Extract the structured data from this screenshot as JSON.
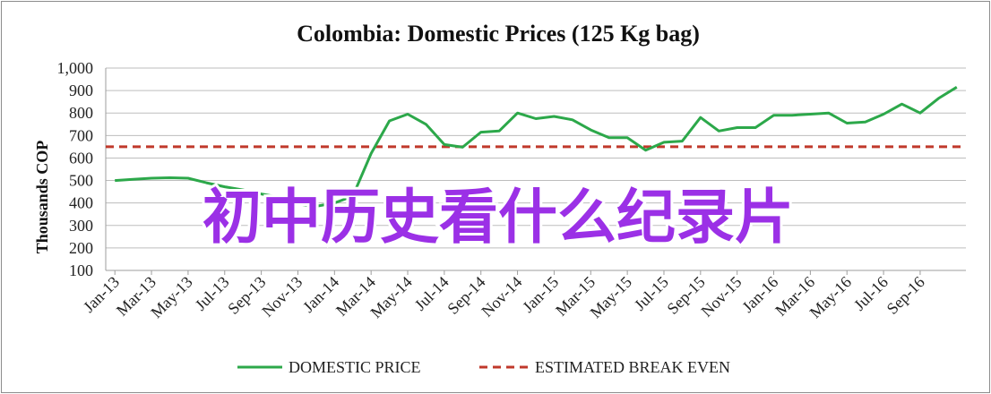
{
  "chart_data": {
    "type": "line",
    "title": "Colombia:  Domestic Prices (125 Kg bag)",
    "ylabel": "Thousands COP",
    "xlabel": "",
    "ylim": [
      100,
      1000
    ],
    "yticks": [
      "100",
      "200",
      "300",
      "400",
      "500",
      "600",
      "700",
      "800",
      "900",
      "1,000"
    ],
    "xtick_labels": [
      "Jan-13",
      "Mar-13",
      "May-13",
      "Jul-13",
      "Sep-13",
      "Nov-13",
      "Jan-14",
      "Mar-14",
      "May-14",
      "Jul-14",
      "Sep-14",
      "Nov-14",
      "Jan-15",
      "Mar-15",
      "May-15",
      "Jul-15",
      "Sep-15",
      "Nov-15",
      "Jan-16",
      "Mar-16",
      "May-16",
      "Jul-16",
      "Sep-16"
    ],
    "grid": "horizontal",
    "legend_position": "bottom",
    "series": [
      {
        "name": "DOMESTIC PRICE",
        "color": "#2ca84a",
        "style": "solid",
        "values": [
          500,
          505,
          510,
          512,
          510,
          490,
          472,
          458,
          440,
          425,
          395,
          385,
          400,
          430,
          620,
          765,
          795,
          750,
          660,
          648,
          715,
          720,
          800,
          775,
          785,
          770,
          725,
          690,
          690,
          635,
          670,
          675,
          780,
          720,
          735,
          735,
          790,
          790,
          795,
          800,
          755,
          760,
          795,
          840,
          800,
          865,
          915
        ]
      },
      {
        "name": "ESTIMATED BREAK EVEN",
        "color": "#c0392b",
        "style": "dashed",
        "values": [
          650,
          650
        ]
      }
    ]
  },
  "overlay_text": "初中历史看什么纪录片",
  "overlay_color": "#9b30e6"
}
